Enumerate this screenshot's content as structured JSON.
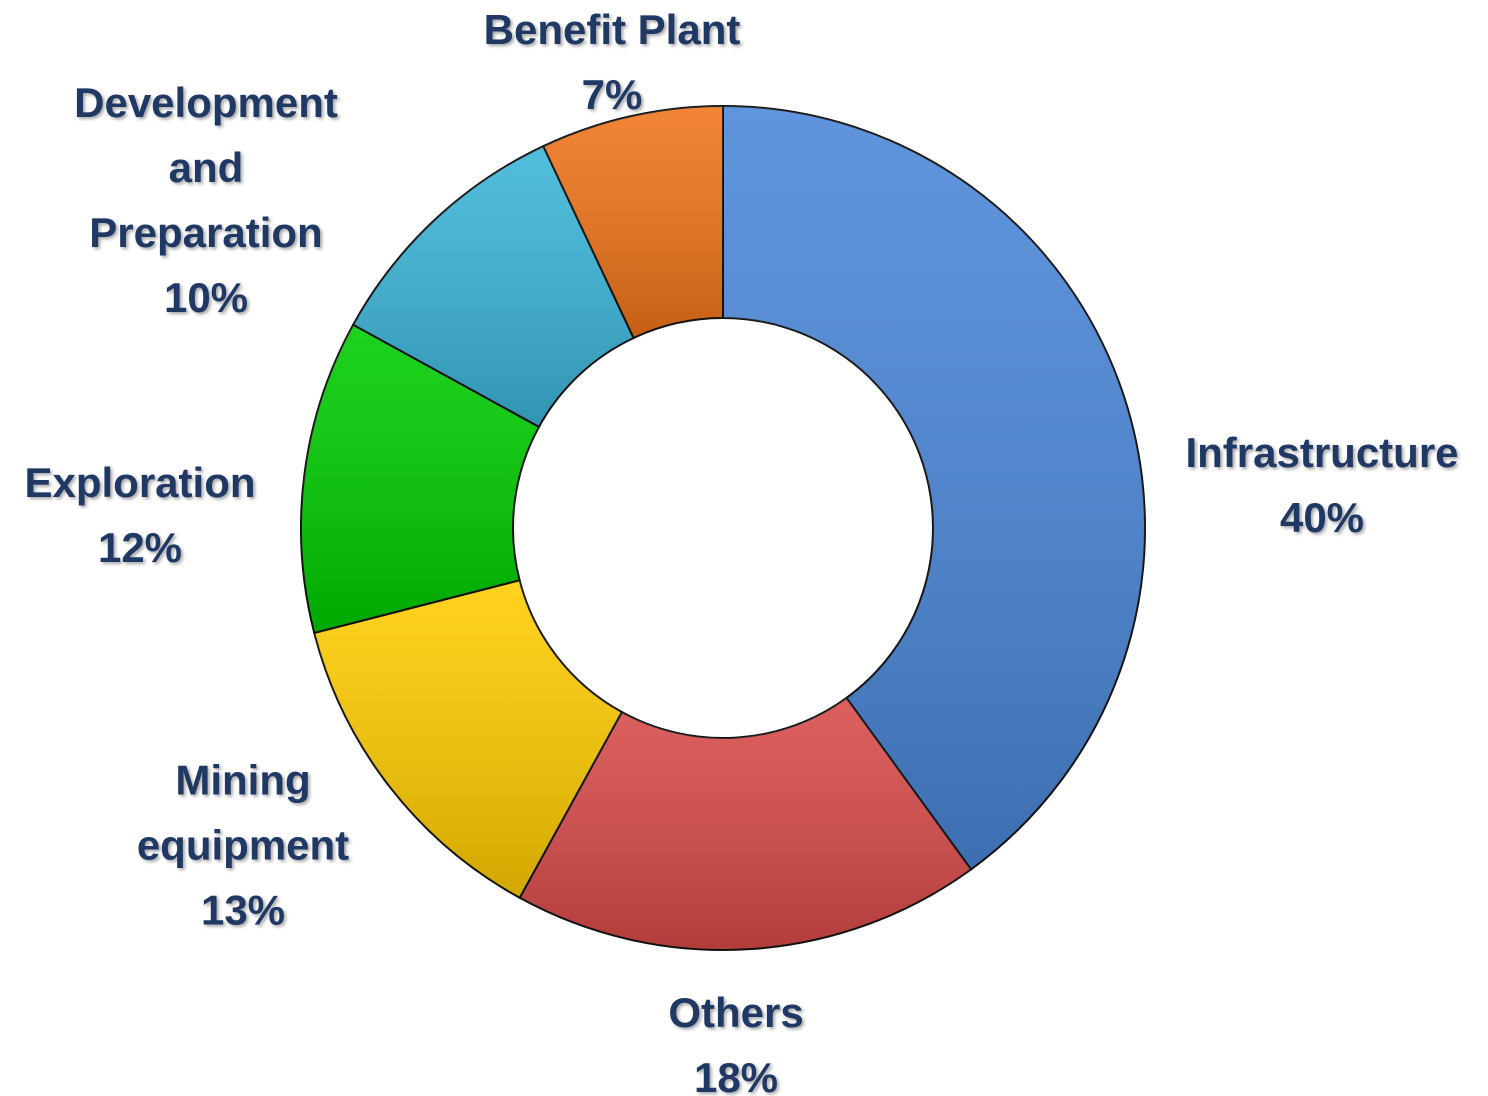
{
  "chart_data": {
    "type": "donut",
    "categories": [
      "Infrastructure",
      "Others",
      "Mining equipment",
      "Exploration",
      "Development and Preparation",
      "Benefit Plant"
    ],
    "values": [
      40,
      18,
      13,
      12,
      10,
      7
    ],
    "value_labels": [
      "40%",
      "18%",
      "13%",
      "12%",
      "10%",
      "7%"
    ],
    "colors": [
      "#4a86d8",
      "#d84a48",
      "#ffcc00",
      "#00cc00",
      "#3bb4d8",
      "#f0741a"
    ]
  }
}
